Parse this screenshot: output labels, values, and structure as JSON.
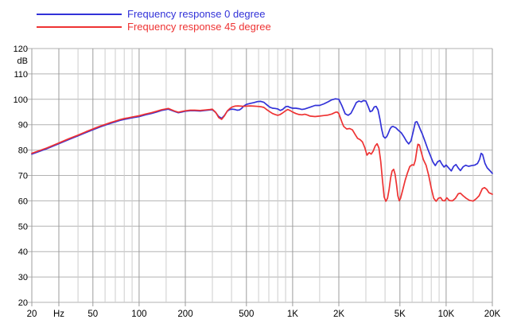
{
  "colors": {
    "series_0deg": "#3232d8",
    "series_45deg": "#ee3333",
    "grid_minor": "#cdcdcd",
    "grid_major_vertical": "#9c9c9c",
    "grid_horizontal": "#b2b2b2",
    "axis_text": "#000000",
    "background": "#ffffff"
  },
  "chart_data": {
    "type": "line",
    "title": "",
    "legend_position": "top-left",
    "grid": true,
    "x_axis": {
      "scale": "log",
      "min": 20,
      "max": 20000,
      "unit_label": "Hz",
      "tick_positions": [
        20,
        30,
        50,
        100,
        200,
        500,
        1000,
        2000,
        5000,
        10000,
        20000
      ],
      "tick_labels": [
        "20",
        "Hz",
        "50",
        "100",
        "200",
        "500",
        "1K",
        "2K",
        "5K",
        "10K",
        "20K"
      ],
      "minor_gridlines": [
        40,
        60,
        70,
        80,
        90,
        150,
        300,
        400,
        600,
        700,
        800,
        900,
        1500,
        3000,
        4000,
        6000,
        7000,
        8000,
        9000,
        15000
      ]
    },
    "y_axis": {
      "min": 20,
      "max": 120,
      "step": 10,
      "unit_label": "dB",
      "tick_labels": [
        "120",
        "110",
        "100",
        "90",
        "80",
        "70",
        "60",
        "50",
        "40",
        "30",
        "20"
      ]
    },
    "series": [
      {
        "name": "Frequency response 0 degree",
        "color": "#3232d8",
        "points": [
          [
            20,
            78.4
          ],
          [
            25,
            80.5
          ],
          [
            30,
            82.5
          ],
          [
            35,
            84.2
          ],
          [
            40,
            85.6
          ],
          [
            45,
            86.9
          ],
          [
            50,
            88.0
          ],
          [
            55,
            89.0
          ],
          [
            60,
            89.8
          ],
          [
            65,
            90.5
          ],
          [
            70,
            91.1
          ],
          [
            75,
            91.7
          ],
          [
            80,
            92.1
          ],
          [
            85,
            92.4
          ],
          [
            90,
            92.7
          ],
          [
            100,
            93.2
          ],
          [
            110,
            93.9
          ],
          [
            120,
            94.4
          ],
          [
            130,
            95.0
          ],
          [
            140,
            95.6
          ],
          [
            155,
            96.1
          ],
          [
            170,
            95.2
          ],
          [
            180,
            94.7
          ],
          [
            190,
            95.0
          ],
          [
            200,
            95.3
          ],
          [
            215,
            95.5
          ],
          [
            230,
            95.5
          ],
          [
            250,
            95.4
          ],
          [
            270,
            95.6
          ],
          [
            290,
            95.8
          ],
          [
            300,
            95.9
          ],
          [
            315,
            94.8
          ],
          [
            330,
            93.2
          ],
          [
            345,
            92.5
          ],
          [
            360,
            93.7
          ],
          [
            375,
            95.3
          ],
          [
            390,
            96.0
          ],
          [
            405,
            96.1
          ],
          [
            420,
            96.0
          ],
          [
            435,
            95.7
          ],
          [
            450,
            95.8
          ],
          [
            465,
            96.4
          ],
          [
            480,
            97.3
          ],
          [
            500,
            98.0
          ],
          [
            530,
            98.4
          ],
          [
            560,
            98.7
          ],
          [
            590,
            99.1
          ],
          [
            620,
            99.2
          ],
          [
            650,
            98.8
          ],
          [
            680,
            97.8
          ],
          [
            710,
            96.9
          ],
          [
            740,
            96.5
          ],
          [
            770,
            96.4
          ],
          [
            800,
            96.2
          ],
          [
            830,
            95.6
          ],
          [
            860,
            96.0
          ],
          [
            900,
            97.1
          ],
          [
            930,
            97.2
          ],
          [
            960,
            96.8
          ],
          [
            1000,
            96.5
          ],
          [
            1050,
            96.5
          ],
          [
            1100,
            96.3
          ],
          [
            1150,
            96.0
          ],
          [
            1200,
            96.2
          ],
          [
            1300,
            96.9
          ],
          [
            1400,
            97.6
          ],
          [
            1500,
            97.6
          ],
          [
            1600,
            98.2
          ],
          [
            1700,
            99.0
          ],
          [
            1800,
            99.8
          ],
          [
            1900,
            100.2
          ],
          [
            2000,
            100.0
          ],
          [
            2100,
            97.3
          ],
          [
            2200,
            94.3
          ],
          [
            2300,
            93.7
          ],
          [
            2400,
            94.5
          ],
          [
            2500,
            96.6
          ],
          [
            2600,
            98.7
          ],
          [
            2700,
            99.3
          ],
          [
            2800,
            99.0
          ],
          [
            2900,
            99.5
          ],
          [
            3000,
            99.3
          ],
          [
            3100,
            97.3
          ],
          [
            3200,
            95.1
          ],
          [
            3300,
            95.5
          ],
          [
            3400,
            97.0
          ],
          [
            3500,
            97.2
          ],
          [
            3600,
            95.8
          ],
          [
            3700,
            92.3
          ],
          [
            3800,
            88.3
          ],
          [
            3900,
            85.4
          ],
          [
            4000,
            84.7
          ],
          [
            4100,
            85.3
          ],
          [
            4200,
            86.6
          ],
          [
            4300,
            88.2
          ],
          [
            4400,
            89.1
          ],
          [
            4500,
            89.3
          ],
          [
            4700,
            88.8
          ],
          [
            4900,
            87.7
          ],
          [
            5100,
            86.8
          ],
          [
            5300,
            85.3
          ],
          [
            5500,
            83.6
          ],
          [
            5700,
            82.4
          ],
          [
            5900,
            83.6
          ],
          [
            6100,
            87.2
          ],
          [
            6300,
            91.0
          ],
          [
            6450,
            91.2
          ],
          [
            6600,
            89.9
          ],
          [
            6800,
            88.0
          ],
          [
            7000,
            86.3
          ],
          [
            7300,
            83.3
          ],
          [
            7600,
            80.3
          ],
          [
            7900,
            77.8
          ],
          [
            8200,
            75.3
          ],
          [
            8500,
            73.9
          ],
          [
            8800,
            75.4
          ],
          [
            9100,
            75.9
          ],
          [
            9400,
            74.4
          ],
          [
            9700,
            73.3
          ],
          [
            10000,
            74.1
          ],
          [
            10400,
            72.9
          ],
          [
            10800,
            71.8
          ],
          [
            11200,
            73.6
          ],
          [
            11600,
            74.3
          ],
          [
            12000,
            72.9
          ],
          [
            12400,
            71.9
          ],
          [
            12900,
            73.4
          ],
          [
            13400,
            74.0
          ],
          [
            14000,
            73.6
          ],
          [
            14700,
            73.9
          ],
          [
            15400,
            74.1
          ],
          [
            16000,
            74.7
          ],
          [
            16500,
            76.3
          ],
          [
            16900,
            78.7
          ],
          [
            17300,
            78.2
          ],
          [
            17900,
            74.8
          ],
          [
            18500,
            73.0
          ],
          [
            19200,
            72.0
          ],
          [
            20000,
            70.8
          ]
        ]
      },
      {
        "name": "Frequency response 45 degree",
        "color": "#ee3333",
        "points": [
          [
            20,
            78.7
          ],
          [
            25,
            80.8
          ],
          [
            30,
            82.8
          ],
          [
            35,
            84.5
          ],
          [
            40,
            85.9
          ],
          [
            45,
            87.2
          ],
          [
            50,
            88.3
          ],
          [
            55,
            89.3
          ],
          [
            60,
            90.1
          ],
          [
            65,
            90.8
          ],
          [
            70,
            91.4
          ],
          [
            75,
            92.0
          ],
          [
            80,
            92.4
          ],
          [
            85,
            92.7
          ],
          [
            90,
            93.0
          ],
          [
            100,
            93.5
          ],
          [
            110,
            94.2
          ],
          [
            120,
            94.7
          ],
          [
            130,
            95.3
          ],
          [
            140,
            95.9
          ],
          [
            155,
            96.4
          ],
          [
            170,
            95.4
          ],
          [
            180,
            94.9
          ],
          [
            190,
            95.2
          ],
          [
            200,
            95.5
          ],
          [
            215,
            95.7
          ],
          [
            230,
            95.7
          ],
          [
            250,
            95.6
          ],
          [
            270,
            95.8
          ],
          [
            290,
            96.0
          ],
          [
            300,
            96.1
          ],
          [
            315,
            94.9
          ],
          [
            330,
            92.8
          ],
          [
            345,
            92.1
          ],
          [
            360,
            93.5
          ],
          [
            375,
            95.4
          ],
          [
            390,
            96.4
          ],
          [
            405,
            97.0
          ],
          [
            420,
            97.3
          ],
          [
            440,
            97.4
          ],
          [
            460,
            97.3
          ],
          [
            480,
            97.2
          ],
          [
            500,
            97.3
          ],
          [
            530,
            97.4
          ],
          [
            560,
            97.3
          ],
          [
            590,
            97.2
          ],
          [
            620,
            97.1
          ],
          [
            650,
            96.8
          ],
          [
            680,
            95.9
          ],
          [
            710,
            95.1
          ],
          [
            740,
            94.4
          ],
          [
            770,
            94.0
          ],
          [
            800,
            93.7
          ],
          [
            830,
            94.0
          ],
          [
            860,
            94.6
          ],
          [
            900,
            95.5
          ],
          [
            930,
            96.0
          ],
          [
            960,
            95.6
          ],
          [
            1000,
            95.0
          ],
          [
            1050,
            94.4
          ],
          [
            1100,
            94.0
          ],
          [
            1150,
            93.9
          ],
          [
            1200,
            94.1
          ],
          [
            1250,
            93.8
          ],
          [
            1300,
            93.4
          ],
          [
            1400,
            93.2
          ],
          [
            1500,
            93.4
          ],
          [
            1600,
            93.6
          ],
          [
            1700,
            93.8
          ],
          [
            1800,
            94.2
          ],
          [
            1900,
            94.9
          ],
          [
            1950,
            95.0
          ],
          [
            2000,
            94.4
          ],
          [
            2050,
            92.5
          ],
          [
            2100,
            90.8
          ],
          [
            2150,
            89.3
          ],
          [
            2250,
            88.3
          ],
          [
            2350,
            88.5
          ],
          [
            2450,
            88.0
          ],
          [
            2550,
            86.2
          ],
          [
            2650,
            84.6
          ],
          [
            2750,
            84.1
          ],
          [
            2850,
            83.2
          ],
          [
            2950,
            81.0
          ],
          [
            3050,
            78.0
          ],
          [
            3150,
            79.0
          ],
          [
            3250,
            78.4
          ],
          [
            3350,
            79.6
          ],
          [
            3450,
            81.6
          ],
          [
            3550,
            82.5
          ],
          [
            3650,
            80.8
          ],
          [
            3750,
            75.5
          ],
          [
            3850,
            68.0
          ],
          [
            3950,
            61.5
          ],
          [
            4050,
            59.8
          ],
          [
            4150,
            61.0
          ],
          [
            4250,
            64.5
          ],
          [
            4350,
            69.0
          ],
          [
            4450,
            71.8
          ],
          [
            4550,
            72.4
          ],
          [
            4650,
            70.5
          ],
          [
            4750,
            66.5
          ],
          [
            4850,
            62.0
          ],
          [
            4950,
            60.0
          ],
          [
            5050,
            61.0
          ],
          [
            5200,
            64.0
          ],
          [
            5400,
            68.0
          ],
          [
            5600,
            71.0
          ],
          [
            5800,
            73.5
          ],
          [
            6000,
            74.2
          ],
          [
            6150,
            74.0
          ],
          [
            6300,
            76.0
          ],
          [
            6450,
            80.0
          ],
          [
            6550,
            82.3
          ],
          [
            6700,
            82.0
          ],
          [
            6900,
            79.0
          ],
          [
            7100,
            76.3
          ],
          [
            7400,
            74.0
          ],
          [
            7700,
            70.0
          ],
          [
            8000,
            65.0
          ],
          [
            8300,
            61.0
          ],
          [
            8600,
            59.8
          ],
          [
            8900,
            61.0
          ],
          [
            9200,
            61.3
          ],
          [
            9500,
            60.1
          ],
          [
            9800,
            60.0
          ],
          [
            10100,
            61.2
          ],
          [
            10500,
            60.1
          ],
          [
            11000,
            60.0
          ],
          [
            11500,
            61.0
          ],
          [
            12000,
            62.8
          ],
          [
            12400,
            63.0
          ],
          [
            12900,
            62.0
          ],
          [
            13500,
            61.0
          ],
          [
            14200,
            60.2
          ],
          [
            15000,
            59.9
          ],
          [
            15700,
            60.8
          ],
          [
            16400,
            62.0
          ],
          [
            17200,
            64.8
          ],
          [
            17800,
            65.2
          ],
          [
            18400,
            64.5
          ],
          [
            19000,
            63.2
          ],
          [
            20000,
            62.6
          ]
        ]
      }
    ]
  }
}
